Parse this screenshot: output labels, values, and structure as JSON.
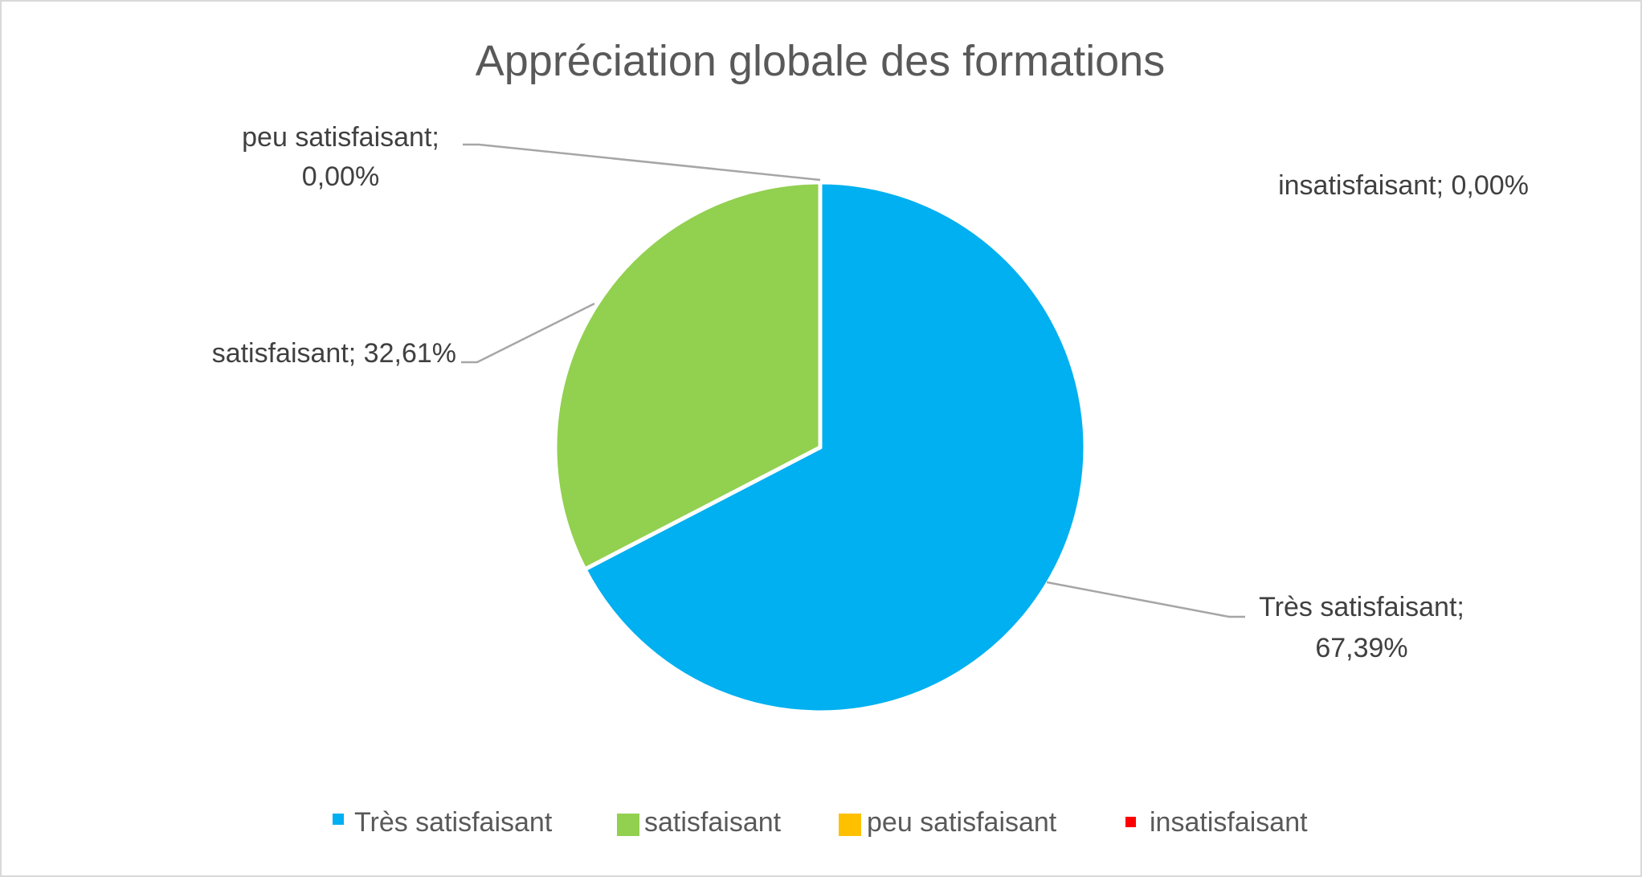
{
  "chart_data": {
    "type": "pie",
    "title": "Appréciation globale des formations",
    "slices": [
      {
        "name": "Très satisfaisant",
        "value": 67.39,
        "label_name": "Très satisfaisant;",
        "label_value": "67,39%",
        "color": "#00B0F0"
      },
      {
        "name": "satisfaisant",
        "value": 32.61,
        "label_name": "satisfaisant; 32,61%",
        "label_value": "",
        "color": "#92D050"
      },
      {
        "name": "peu satisfaisant",
        "value": 0.0,
        "label_name": "peu satisfaisant;",
        "label_value": "0,00%",
        "color": "#FFC000"
      },
      {
        "name": "insatisfaisant",
        "value": 0.0,
        "label_name": "insatisfaisant; 0,00%",
        "label_value": "",
        "color": "#FF0000"
      }
    ],
    "legend_position": "bottom",
    "start_angle_deg": 0,
    "direction": "clockwise"
  }
}
